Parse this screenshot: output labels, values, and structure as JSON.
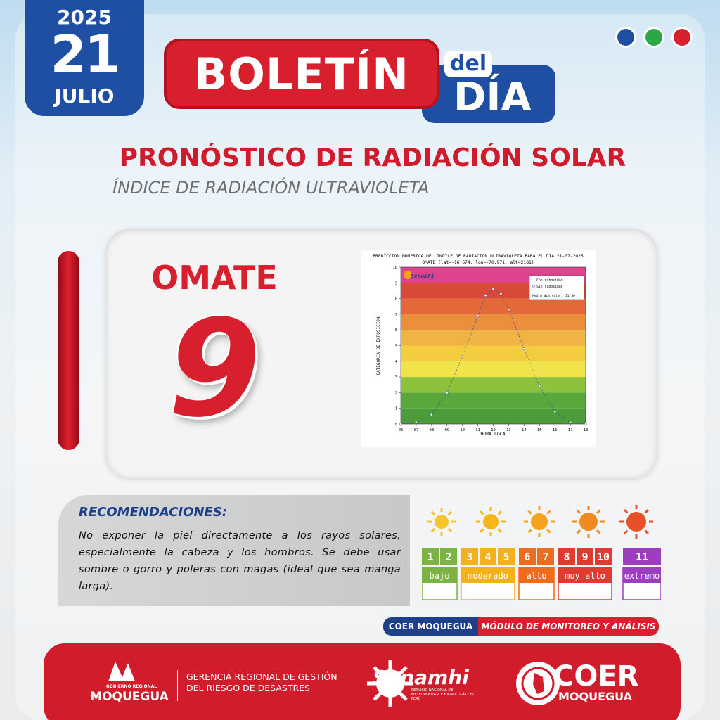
{
  "header": {
    "year": "2025",
    "day": "21",
    "month": "JULIO",
    "title": "BOLETÍN",
    "title_small": "del",
    "title_big": "DÍA"
  },
  "heading": "PRONÓSTICO DE RADIACIÓN SOLAR",
  "subheading": "ÍNDICE DE RADIACIÓN ULTRAVIOLETA",
  "station": "OMATE",
  "uv_index": 9,
  "chart_data": {
    "type": "line",
    "title": "PREDICCION NUMERICA DEL INDICE DE RADIACION ULTRAVIOLETA PARA EL DIA 21-07-2025",
    "subtitle": "OMATE (lat=-16.674, lon=-70.971, alt=2181)",
    "logo": "Senamhi",
    "x_label": "HORA LOCAL",
    "y_label": "CATEGORIA DE EXPOSICION",
    "x": [
      6,
      7,
      8,
      9,
      10,
      11,
      11.5,
      12,
      12.5,
      13,
      14,
      15,
      16,
      17,
      18
    ],
    "series": [
      {
        "name": "Sin nubosidad",
        "color": "#ffffff",
        "values": [
          0,
          0.1,
          0.6,
          2.0,
          4.3,
          6.9,
          8.2,
          8.6,
          8.3,
          7.3,
          4.8,
          2.4,
          0.8,
          0.1,
          0
        ]
      }
    ],
    "annotations": [
      "Con nubosidad",
      "Medio día solar: 11:50"
    ],
    "xlim": [
      6,
      18
    ],
    "ylim": [
      0,
      10
    ],
    "xticks": [
      {
        "value": 6,
        "label": "06"
      },
      {
        "value": 7,
        "label": "07"
      },
      {
        "value": 8,
        "label": "08"
      },
      {
        "value": 9,
        "label": "09"
      },
      10,
      11,
      12,
      13,
      14,
      15,
      16,
      17,
      18
    ],
    "yticks": [
      0,
      1,
      2,
      3,
      4,
      5,
      6,
      7,
      8,
      9,
      10
    ]
  },
  "recommendations": {
    "title": "RECOMENDACIONES:",
    "text": "No exponer la piel directamente a los rayos solares, especialmente la cabeza y los hombros. Se debe usar sombre o gorro y poleras con magas (ideal que sea manga larga)."
  },
  "uv_scale": {
    "levels": [
      1,
      2,
      3,
      4,
      5,
      6,
      7,
      8,
      9,
      10,
      11
    ],
    "categories": [
      "bajo",
      "moderado",
      "alto",
      "muy alto",
      "extremo"
    ]
  },
  "badge": {
    "left": "COER MOQUEGUA",
    "right": "MÓDULO DE MONITOREO Y ANÁLISIS"
  },
  "footer": {
    "gore_small": "GOBIERNO REGIONAL",
    "gore": "MOQUEGUA",
    "gerencia_1": "GERENCIA REGIONAL DE GESTIÓN",
    "gerencia_2": "DEL RIESGO DE DESASTRES",
    "senamhi": "Senamhi",
    "senamhi_sub": "SERVICIO NACIONAL DE METEOROLOGÍA E HIDROLOGÍA DEL PERÚ",
    "coer": "COER",
    "coer_sub": "MOQUEGUA"
  }
}
